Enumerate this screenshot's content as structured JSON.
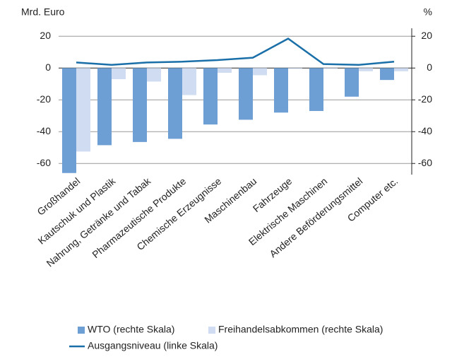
{
  "chart_data": {
    "type": "bar_line",
    "y_axis_label": "Mrd. Euro",
    "y2_axis_label": "%",
    "categories": [
      "Großhandel",
      "Kautschuk und Plastik",
      "Nahrung, Getränke und Tabak",
      "Pharmazeutische Produkte",
      "Chemische Erzeugnisse",
      "Maschinenbau",
      "Fahrzeuge",
      "Elektrische Maschinen",
      "Andere Beförderungsmittel",
      "Computer etc."
    ],
    "series": [
      {
        "name": "WTO (rechte Skala)",
        "type": "bar",
        "axis": "y2",
        "color": "#6d9fd5",
        "values": [
          -66,
          -48.5,
          -46.5,
          -44.5,
          -35.5,
          -32.5,
          -28,
          -27,
          -18,
          -7.5
        ]
      },
      {
        "name": "Freihandelsabkommen (rechte Skala)",
        "type": "bar",
        "axis": "y2",
        "color": "#cfdcf2",
        "values": [
          -52.5,
          -7,
          -8.5,
          -17,
          -3,
          -4.5,
          -0.5,
          -0.5,
          -2,
          -2
        ]
      },
      {
        "name": "Ausgangsniveau (linke Skala)",
        "type": "line",
        "axis": "y",
        "color": "#1a6fa8",
        "values": [
          3.5,
          2,
          3.5,
          4,
          5,
          6.5,
          18.5,
          2.5,
          2,
          4
        ]
      }
    ],
    "ylim": [
      -67,
      25
    ],
    "yticks": [
      20,
      0,
      -20,
      -40,
      -60
    ],
    "y2lim": [
      -67,
      25
    ],
    "y2ticks": [
      20,
      0,
      -20,
      -40,
      -60
    ],
    "grid": true
  }
}
